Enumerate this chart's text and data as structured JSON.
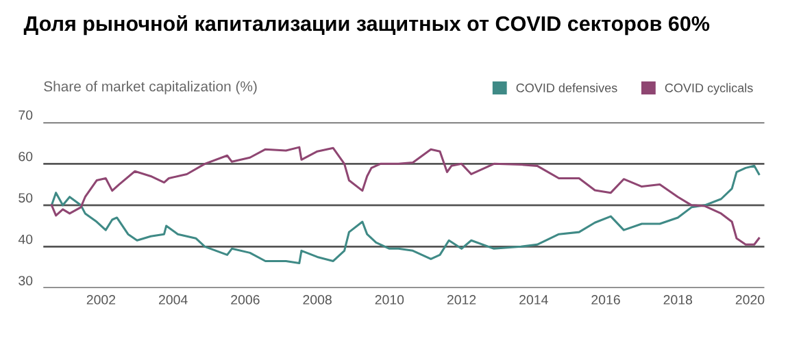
{
  "chart_data": {
    "type": "line",
    "title": "Доля рыночной капитализации защитных от COVID секторов 60%",
    "ylabel": "Share of market capitalization (%)",
    "xlim": [
      2000.4,
      2020.4
    ],
    "xticks": [
      2002,
      2004,
      2006,
      2008,
      2010,
      2012,
      2014,
      2016,
      2018,
      2020
    ],
    "ylim": [
      30,
      70
    ],
    "yticks": [
      30,
      40,
      50,
      60,
      70
    ],
    "grid": "y",
    "legend": "top right",
    "series": [
      {
        "name": "COVID defensives",
        "color": "#3f8a86",
        "x": [
          2000.63,
          2000.75,
          2000.94,
          2001.13,
          2001.44,
          2001.56,
          2001.88,
          2002.13,
          2002.31,
          2002.44,
          2002.75,
          2003.0,
          2003.38,
          2003.75,
          2003.81,
          2004.13,
          2004.63,
          2004.88,
          2005.5,
          2005.63,
          2006.13,
          2006.56,
          2007.13,
          2007.5,
          2007.56,
          2008.0,
          2008.44,
          2008.75,
          2008.88,
          2009.25,
          2009.38,
          2009.63,
          2010.0,
          2010.25,
          2010.65,
          2011.15,
          2011.4,
          2011.65,
          2012.0,
          2012.27,
          2012.9,
          2013.65,
          2014.1,
          2014.7,
          2015.26,
          2015.7,
          2016.14,
          2016.5,
          2017.0,
          2017.5,
          2018.0,
          2018.38,
          2018.75,
          2019.2,
          2019.5,
          2019.63,
          2019.88,
          2020.12,
          2020.25
        ],
        "values": [
          50,
          53,
          50,
          52,
          50,
          48,
          46,
          44,
          46.5,
          47,
          43,
          41.5,
          42.5,
          43,
          45,
          43,
          42,
          40,
          38,
          39.5,
          38.5,
          36.5,
          36.5,
          36,
          39,
          37.5,
          36.5,
          39,
          43.5,
          46,
          43,
          41,
          39.5,
          39.5,
          39,
          37,
          38,
          41.5,
          39.5,
          41.5,
          39.5,
          40,
          40.5,
          43,
          43.5,
          45.8,
          47.3,
          44,
          45.5,
          45.5,
          47,
          49.5,
          50,
          51.5,
          54,
          58,
          59,
          59.5,
          57.5
        ]
      },
      {
        "name": "COVID cyclicals",
        "color": "#8f4672",
        "x": [
          2000.63,
          2000.75,
          2000.94,
          2001.13,
          2001.44,
          2001.56,
          2001.88,
          2002.13,
          2002.31,
          2002.5,
          2002.94,
          2003.38,
          2003.75,
          2003.88,
          2004.38,
          2004.88,
          2005.5,
          2005.63,
          2006.13,
          2006.56,
          2007.13,
          2007.5,
          2007.56,
          2008.0,
          2008.44,
          2008.75,
          2008.88,
          2009.25,
          2009.38,
          2009.5,
          2009.75,
          2010.25,
          2010.65,
          2011.15,
          2011.4,
          2011.6,
          2011.72,
          2012.0,
          2012.27,
          2012.9,
          2013.65,
          2014.1,
          2014.7,
          2015.26,
          2015.7,
          2016.14,
          2016.5,
          2017.0,
          2017.5,
          2018.0,
          2018.38,
          2018.75,
          2019.2,
          2019.5,
          2019.63,
          2019.88,
          2020.12,
          2020.25
        ],
        "values": [
          50,
          47.5,
          49,
          48,
          49.5,
          52,
          56,
          56.5,
          53.5,
          55,
          58.2,
          57,
          55.5,
          56.5,
          57.5,
          60,
          62,
          60.5,
          61.5,
          63.5,
          63.2,
          64,
          61,
          63,
          63.8,
          60,
          56,
          53.5,
          57,
          59,
          60,
          60,
          60.3,
          63.5,
          63,
          58,
          59.5,
          60,
          57.5,
          60,
          59.8,
          59.5,
          56.5,
          56.5,
          53.6,
          53,
          56.3,
          54.5,
          55,
          52,
          50,
          49.8,
          48,
          46,
          42,
          40.5,
          40.5,
          42
        ]
      }
    ]
  }
}
